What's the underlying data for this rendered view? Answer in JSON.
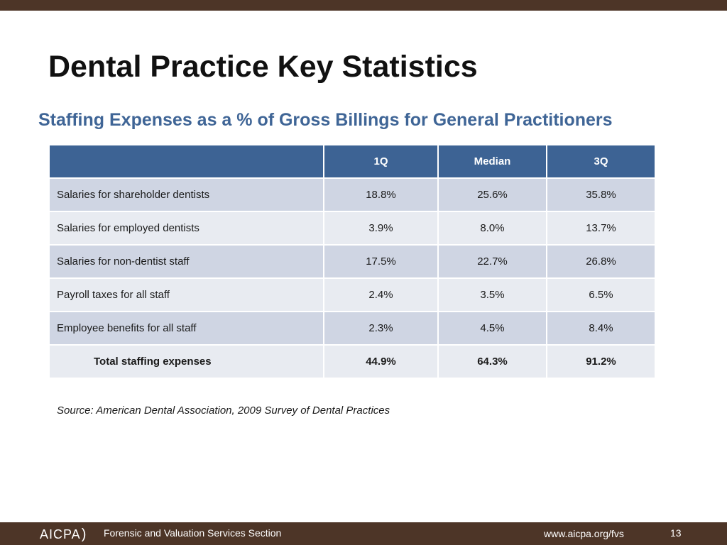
{
  "slide": {
    "title": "Dental Practice Key Statistics",
    "subtitle": "Staffing Expenses as a % of Gross Billings for General Practitioners"
  },
  "table": {
    "headers": [
      "",
      "1Q",
      "Median",
      "3Q"
    ],
    "rows": [
      {
        "label": "Salaries for shareholder dentists",
        "values": [
          "18.8%",
          "25.6%",
          "35.8%"
        ]
      },
      {
        "label": "Salaries for employed dentists",
        "values": [
          "3.9%",
          "8.0%",
          "13.7%"
        ]
      },
      {
        "label": "Salaries for non-dentist staff",
        "values": [
          "17.5%",
          "22.7%",
          "26.8%"
        ]
      },
      {
        "label": "Payroll taxes for all staff",
        "values": [
          "2.4%",
          "3.5%",
          "6.5%"
        ]
      },
      {
        "label": "Employee benefits for all staff",
        "values": [
          "2.3%",
          "4.5%",
          "8.4%"
        ]
      },
      {
        "label": "Total staffing expenses",
        "values": [
          "44.9%",
          "64.3%",
          "91.2%"
        ]
      }
    ]
  },
  "source": "Source:  American Dental Association, 2009 Survey of Dental Practices",
  "footer": {
    "logo_text": "AICPA",
    "section": "Forensic and Valuation Services Section",
    "url": "www.aicpa.org/fvs",
    "page_number": "13"
  },
  "colors": {
    "bar_brown": "#4d3527",
    "header_blue": "#3d6394",
    "subtitle_blue": "#3f6596",
    "row_dark": "#cfd5e3",
    "row_light": "#e8ebf1"
  }
}
